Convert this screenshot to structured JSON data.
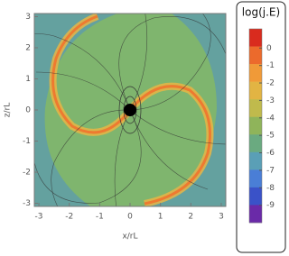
{
  "chart_data": {
    "type": "heatmap",
    "xlabel": "x/rL",
    "ylabel": "z/rL",
    "xlim": [
      -3.15,
      3.15
    ],
    "ylim": [
      -3.1,
      3.1
    ],
    "xticks": [
      -3,
      -2,
      -1,
      0,
      1,
      2,
      3
    ],
    "yticks": [
      -3,
      -2,
      -1,
      0,
      1,
      2,
      3
    ],
    "colorbar": {
      "title": "log(j.E)",
      "lim": [
        -10,
        1.1
      ],
      "ticks": [
        0,
        -1,
        -2,
        -3,
        -4,
        -5,
        -6,
        -7,
        -8,
        -9
      ],
      "colors": [
        "#d92b1e",
        "#ec6a2c",
        "#f09a38",
        "#e2b443",
        "#c0ba4c",
        "#8fb45a",
        "#6aaa80",
        "#5a9fb6",
        "#4a7ed6",
        "#3a52c8",
        "#6a2aa8"
      ]
    }
  }
}
